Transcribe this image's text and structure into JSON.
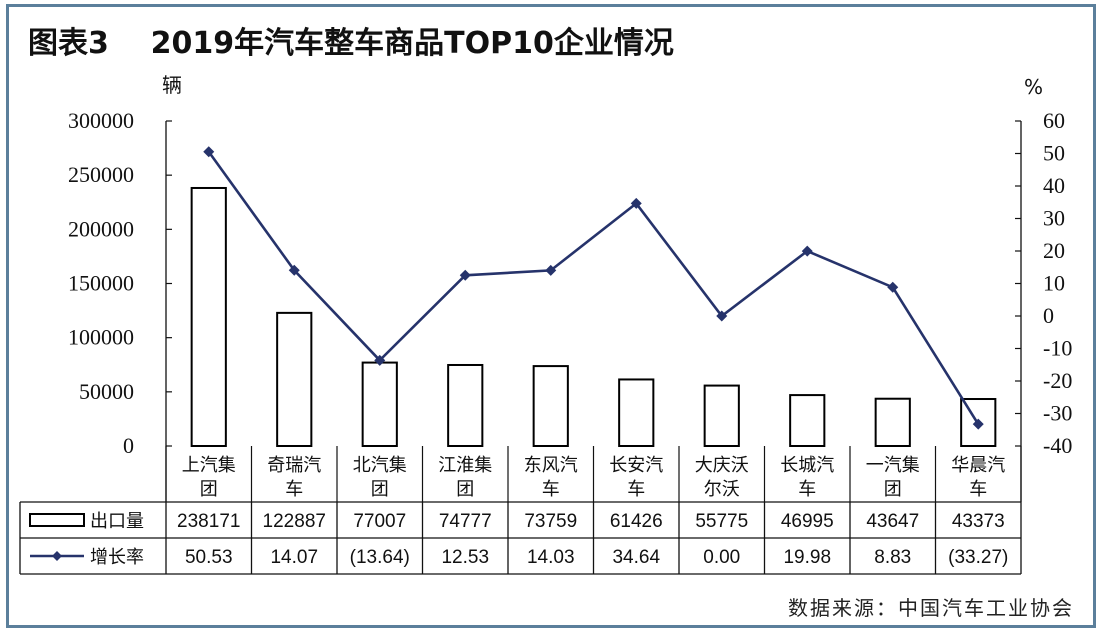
{
  "figure": {
    "title": "图表3    2019年汽车整车商品TOP10企业情况",
    "source": "数据来源：中国汽车工业协会"
  },
  "chart_data": {
    "type": "bar",
    "categories": [
      "上汽集团",
      "奇瑞汽车",
      "北汽集团",
      "江淮集团",
      "东风汽车",
      "长安汽车",
      "大庆沃尔沃",
      "长城汽车",
      "一汽集团",
      "华晨汽车"
    ],
    "category_lines": [
      [
        "上汽集",
        "团"
      ],
      [
        "奇瑞汽",
        "车"
      ],
      [
        "北汽集",
        "团"
      ],
      [
        "江淮集",
        "团"
      ],
      [
        "东风汽",
        "车"
      ],
      [
        "长安汽",
        "车"
      ],
      [
        "大庆沃",
        "尔沃"
      ],
      [
        "长城汽",
        "车"
      ],
      [
        "一汽集",
        "团"
      ],
      [
        "华晨汽",
        "车"
      ]
    ],
    "y_left": {
      "unit": "辆",
      "lim": [
        0,
        300000
      ],
      "ticks": [
        "0",
        "50000",
        "100000",
        "150000",
        "200000",
        "250000",
        "300000"
      ]
    },
    "y_right": {
      "unit": "%",
      "lim": [
        -40,
        60
      ],
      "ticks": [
        "-40",
        "-30",
        "-20",
        "-10",
        "0",
        "10",
        "20",
        "30",
        "40",
        "50",
        "60"
      ]
    },
    "series": [
      {
        "name": "出口量",
        "type": "bar",
        "axis": "left",
        "color": "#000000",
        "values": [
          238171,
          122887,
          77007,
          74777,
          73759,
          61426,
          55775,
          46995,
          43647,
          43373
        ],
        "labels": [
          "238171",
          "122887",
          "77007",
          "74777",
          "73759",
          "61426",
          "55775",
          "46995",
          "43647",
          "43373"
        ]
      },
      {
        "name": "增长率",
        "type": "line",
        "axis": "right",
        "color": "#26336b",
        "values": [
          50.53,
          14.07,
          -13.64,
          12.53,
          14.03,
          34.64,
          0.0,
          19.98,
          8.83,
          -33.27
        ],
        "labels": [
          "50.53",
          "14.07",
          "(13.64)",
          "12.53",
          "14.03",
          "34.64",
          "0.00",
          "19.98",
          "8.83",
          "(33.27)"
        ]
      }
    ],
    "legend": "data table below chart",
    "grid": false
  }
}
